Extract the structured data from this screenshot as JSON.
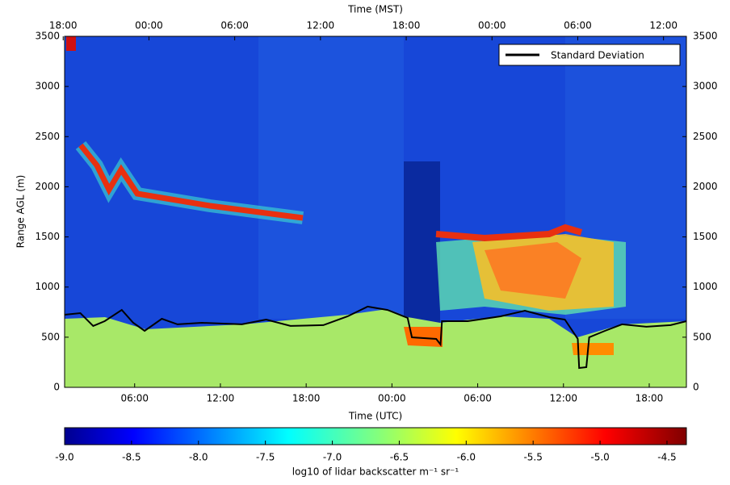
{
  "chart_data": {
    "type": "line",
    "title_top": "Time (MST)",
    "x_label": "Time (UTC)",
    "y_label": "Range AGL (m)",
    "xlim": [
      1.1,
      44.6
    ],
    "xticks": [
      {
        "value": 6,
        "label": "06:00"
      },
      {
        "value": 12,
        "label": "12:00"
      },
      {
        "value": 18,
        "label": "18:00"
      },
      {
        "value": 24,
        "label": "00:00"
      },
      {
        "value": 30,
        "label": "06:00"
      },
      {
        "value": 36,
        "label": "12:00"
      },
      {
        "value": 42,
        "label": "18:00"
      }
    ],
    "x2ticks": [
      {
        "value": 1,
        "label": "18:00"
      },
      {
        "value": 7,
        "label": "00:00"
      },
      {
        "value": 13,
        "label": "06:00"
      },
      {
        "value": 19,
        "label": "12:00"
      },
      {
        "value": 25,
        "label": "18:00"
      },
      {
        "value": 31,
        "label": "00:00"
      },
      {
        "value": 37,
        "label": "06:00"
      },
      {
        "value": 43,
        "label": "12:00"
      }
    ],
    "ylim": [
      0,
      3500
    ],
    "yticks": [
      0,
      500,
      1000,
      1500,
      2000,
      2500,
      3000,
      3500
    ],
    "legend": "upper right",
    "series": [
      {
        "name": "Standard Deviation",
        "color": "#000000",
        "x": [
          1.1,
          2.2,
          3.1,
          3.9,
          5.1,
          5.9,
          6.7,
          7.9,
          9.0,
          10.7,
          13.5,
          15.2,
          16.9,
          19.2,
          20.9,
          22.3,
          23.7,
          25.1,
          25.4,
          27.1,
          27.4,
          27.5,
          29.3,
          31.6,
          33.3,
          35.0,
          36.1,
          37.0,
          37.1,
          37.6,
          37.8,
          38.9,
          40.1,
          41.8,
          43.5,
          44.6
        ],
        "values": [
          724,
          740,
          612,
          660,
          772,
          644,
          563,
          684,
          628,
          644,
          628,
          676,
          612,
          620,
          708,
          805,
          772,
          692,
          499,
          483,
          427,
          660,
          660,
          708,
          764,
          700,
          676,
          483,
          193,
          201,
          499,
          563,
          628,
          604,
          620,
          660
        ]
      }
    ],
    "colorbar": {
      "label": "log10 of lidar backscatter m⁻¹ sr⁻¹",
      "clim": [
        -9,
        -4.355
      ],
      "ticks": [
        {
          "value": -9,
          "label": "-9.0"
        },
        {
          "value": -8.5,
          "label": "-8.5"
        },
        {
          "value": -8,
          "label": "-8.0"
        },
        {
          "value": -7.5,
          "label": "-7.5"
        },
        {
          "value": -7,
          "label": "-7.0"
        },
        {
          "value": -6.5,
          "label": "-6.5"
        },
        {
          "value": -6,
          "label": "-6.0"
        },
        {
          "value": -5.5,
          "label": "-5.5"
        },
        {
          "value": -5,
          "label": "-5.0"
        },
        {
          "value": -4.5,
          "label": "-4.5"
        }
      ]
    }
  }
}
